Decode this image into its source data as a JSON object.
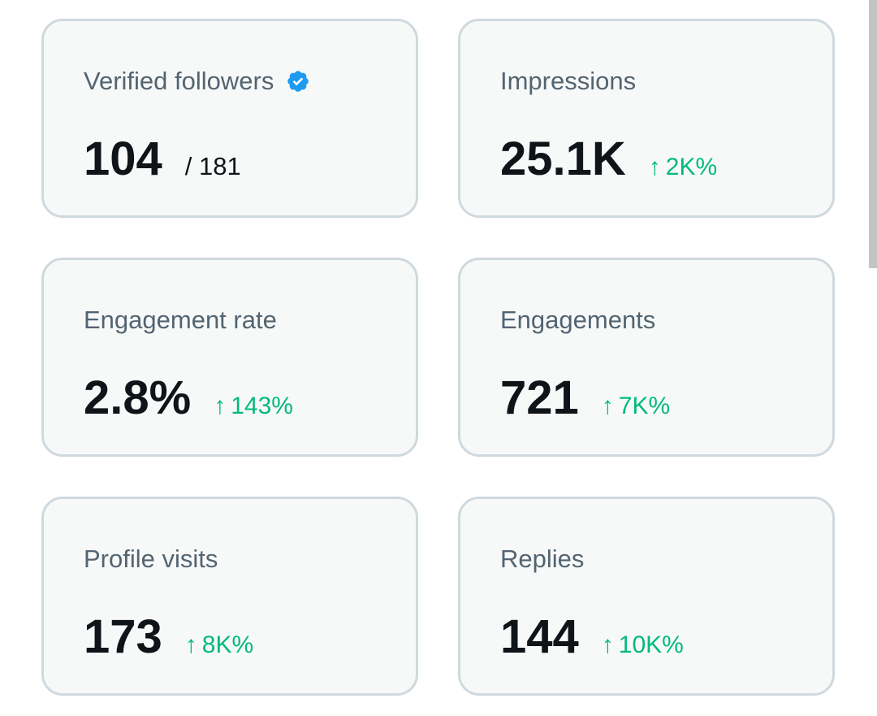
{
  "cards": [
    {
      "label": "Verified followers",
      "value": "104",
      "total": "/ 181",
      "icon": "verified-badge-icon",
      "icon_color": "#1d9bf0"
    },
    {
      "label": "Impressions",
      "value": "25.1K",
      "delta_arrow": "↑",
      "delta": "2K%"
    },
    {
      "label": "Engagement rate",
      "value": "2.8%",
      "delta_arrow": "↑",
      "delta": "143%"
    },
    {
      "label": "Engagements",
      "value": "721",
      "delta_arrow": "↑",
      "delta": "7K%"
    },
    {
      "label": "Profile visits",
      "value": "173",
      "delta_arrow": "↑",
      "delta": "8K%"
    },
    {
      "label": "Replies",
      "value": "144",
      "delta_arrow": "↑",
      "delta": "10K%"
    }
  ],
  "colors": {
    "card_bg": "#f7f9f9",
    "card_border": "#cfd9de",
    "label": "#536471",
    "value": "#0f1419",
    "positive": "#00ba7c"
  }
}
